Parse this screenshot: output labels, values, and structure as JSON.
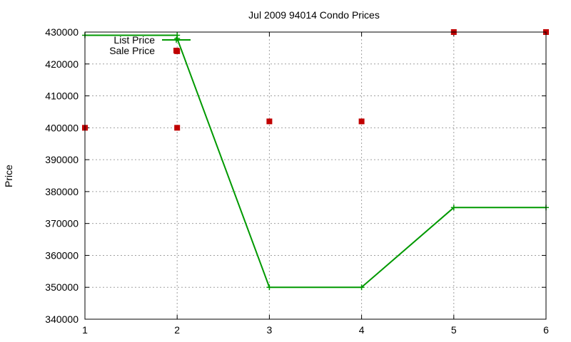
{
  "chart_data": {
    "type": "line",
    "title": "Jul 2009 94014 Condo Prices",
    "xlabel": "",
    "ylabel": "Price",
    "xlim": [
      1,
      6
    ],
    "ylim": [
      340000,
      430000
    ],
    "x_ticks": [
      1,
      2,
      3,
      4,
      5,
      6
    ],
    "y_ticks": [
      340000,
      350000,
      360000,
      370000,
      380000,
      390000,
      400000,
      410000,
      420000,
      430000
    ],
    "grid": true,
    "legend_position": "top-left",
    "series": [
      {
        "name": "List Price",
        "style": "line-with-plus-markers",
        "color": "#009900",
        "points": [
          {
            "x": 1,
            "y": 429000
          },
          {
            "x": 2,
            "y": 429000
          },
          {
            "x": 2,
            "y": 428000
          },
          {
            "x": 3,
            "y": 350000
          },
          {
            "x": 4,
            "y": 350000
          },
          {
            "x": 5,
            "y": 375000
          },
          {
            "x": 6,
            "y": 375000
          }
        ]
      },
      {
        "name": "Sale Price",
        "style": "square-markers",
        "color": "#c00000",
        "points": [
          {
            "x": 1,
            "y": 400000
          },
          {
            "x": 2,
            "y": 400000
          },
          {
            "x": 2,
            "y": 424000
          },
          {
            "x": 3,
            "y": 402000
          },
          {
            "x": 4,
            "y": 402000
          },
          {
            "x": 5,
            "y": 430000
          },
          {
            "x": 6,
            "y": 430000
          }
        ]
      }
    ]
  }
}
